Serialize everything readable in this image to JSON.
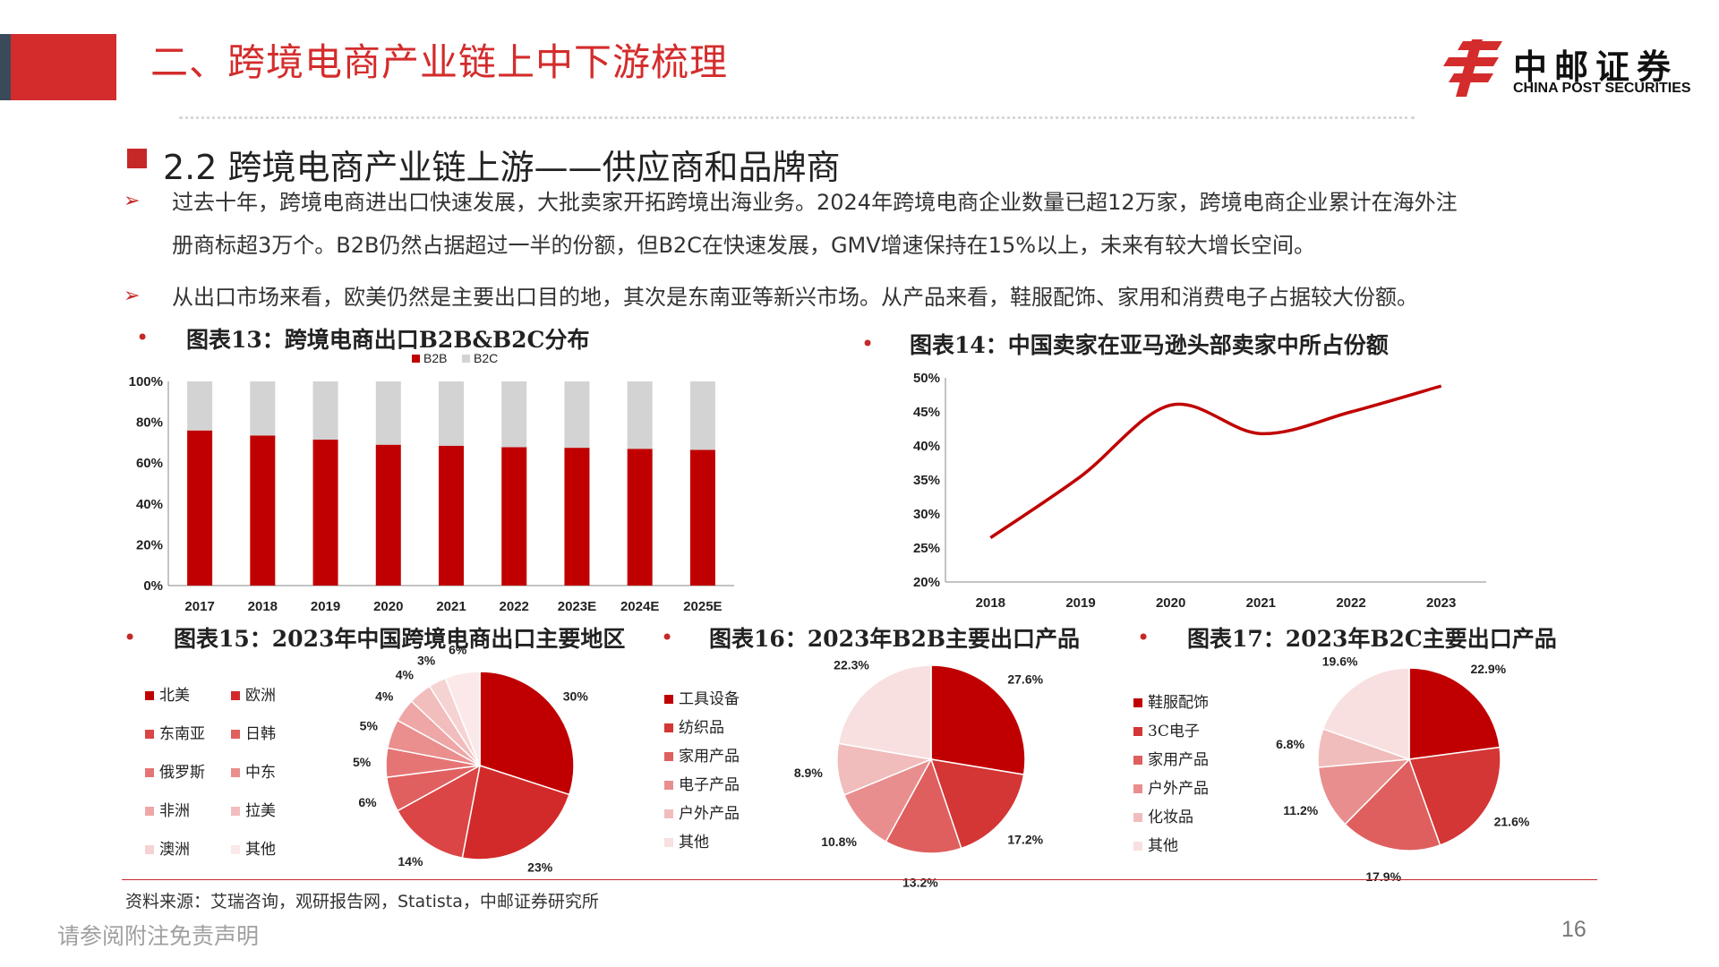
{
  "header": {
    "title": "二、跨境电商产业链上中下游梳理",
    "logo_cn": "中邮证券",
    "logo_en": "CHINA POST SECURITIES"
  },
  "section": {
    "title": "2.2 跨境电商产业链上游——供应商和品牌商"
  },
  "bullets": [
    {
      "line1": "过去十年，跨境电商进出口快速发展，大批卖家开拓跨境出海业务。2024年跨境电商企业数量已超12万家，跨境电商企业累计在海外注",
      "line2": "册商标超3万个。B2B仍然占据超过一半的份额，但B2C在快速发展，GMV增速保持在15%以上，未来有较大增长空间。"
    },
    {
      "line1": "从出口市场来看，欧美仍然是主要出口目的地，其次是东南亚等新兴市场。从产品来看，鞋服配饰、家用和消费电子占据较大份额。"
    }
  ],
  "bullet_arrow": "➢",
  "charts": [
    {
      "id": "c13",
      "label": "图表13：跨境电商出口B2B&B2C分布"
    },
    {
      "id": "c14",
      "label": "图表14：中国卖家在亚马逊头部卖家中所占份额"
    },
    {
      "id": "c15",
      "label": "图表15：2023年中国跨境电商出口主要地区"
    },
    {
      "id": "c16",
      "label": "图表16：2023年B2B主要出口产品"
    },
    {
      "id": "c17",
      "label": "图表17：2023年B2C主要出口产品"
    }
  ],
  "chart_data": [
    {
      "type": "bar",
      "stacked": true,
      "categories": [
        "2017",
        "2018",
        "2019",
        "2020",
        "2021",
        "2022",
        "2023E",
        "2024E",
        "2025E"
      ],
      "series": [
        {
          "name": "B2B",
          "values": [
            76,
            73.5,
            71.5,
            69,
            68.5,
            67.8,
            67.5,
            67,
            66.5
          ],
          "color": "#c00000"
        },
        {
          "name": "B2C",
          "values": [
            24,
            26.5,
            28.5,
            31,
            31.5,
            32.2,
            32.5,
            33,
            33.5
          ],
          "color": "#d3d3d3"
        }
      ],
      "yticks": [
        "0%",
        "20%",
        "40%",
        "60%",
        "80%",
        "100%"
      ],
      "ylim": [
        0,
        100
      ],
      "legend": "top"
    },
    {
      "type": "line",
      "categories": [
        "2018",
        "2019",
        "2020",
        "2021",
        "2022",
        "2023"
      ],
      "series": [
        {
          "values": [
            26.5,
            35.5,
            46,
            41.8,
            45,
            48.8
          ],
          "color": "#c00000"
        }
      ],
      "yticks": [
        "20%",
        "25%",
        "30%",
        "35%",
        "40%",
        "45%",
        "50%"
      ],
      "ylim": [
        20,
        50
      ]
    },
    {
      "type": "pie",
      "labels": [
        "北美",
        "欧洲",
        "东南亚",
        "日韩",
        "俄罗斯",
        "中东",
        "非洲",
        "拉美",
        "澳洲",
        "其他"
      ],
      "values": [
        30,
        23,
        14,
        6,
        5,
        5,
        4,
        4,
        3,
        6
      ],
      "value_labels": [
        "30%",
        "23%",
        "14%",
        "6%",
        "5%",
        "5%",
        "4%",
        "4%",
        "3%",
        "6%"
      ],
      "colors": [
        "#c00000",
        "#d22a2a",
        "#db4545",
        "#e06060",
        "#e57575",
        "#ea8e8e",
        "#eea6a6",
        "#f2bdbd",
        "#f6d3d3",
        "#fbe9e9"
      ]
    },
    {
      "type": "pie",
      "labels": [
        "工具设备",
        "纺织品",
        "家用产品",
        "电子产品",
        "户外产品",
        "其他"
      ],
      "values": [
        27.6,
        17.2,
        13.2,
        10.8,
        8.9,
        22.3
      ],
      "value_labels": [
        "27.6%",
        "17.2%",
        "13.2%",
        "10.8%",
        "8.9%",
        "22.3%"
      ],
      "colors": [
        "#c00000",
        "#d43535",
        "#df5f5f",
        "#e98e8e",
        "#f1bcbc",
        "#f8e0e0"
      ]
    },
    {
      "type": "pie",
      "labels": [
        "鞋服配饰",
        "3C电子",
        "家用产品",
        "户外产品",
        "化妆品",
        "其他"
      ],
      "values": [
        22.9,
        21.6,
        17.9,
        11.2,
        6.8,
        19.6
      ],
      "value_labels": [
        "22.9%",
        "21.6%",
        "17.9%",
        "11.2%",
        "6.8%",
        "19.6%"
      ],
      "colors": [
        "#c00000",
        "#d43535",
        "#df5f5f",
        "#e98e8e",
        "#f1bcbc",
        "#f8e0e0"
      ]
    }
  ],
  "source": "资料来源：艾瑞咨询，观研报告网，Statista，中邮证券研究所",
  "footer": "请参阅附注免责声明",
  "page_number": "16"
}
